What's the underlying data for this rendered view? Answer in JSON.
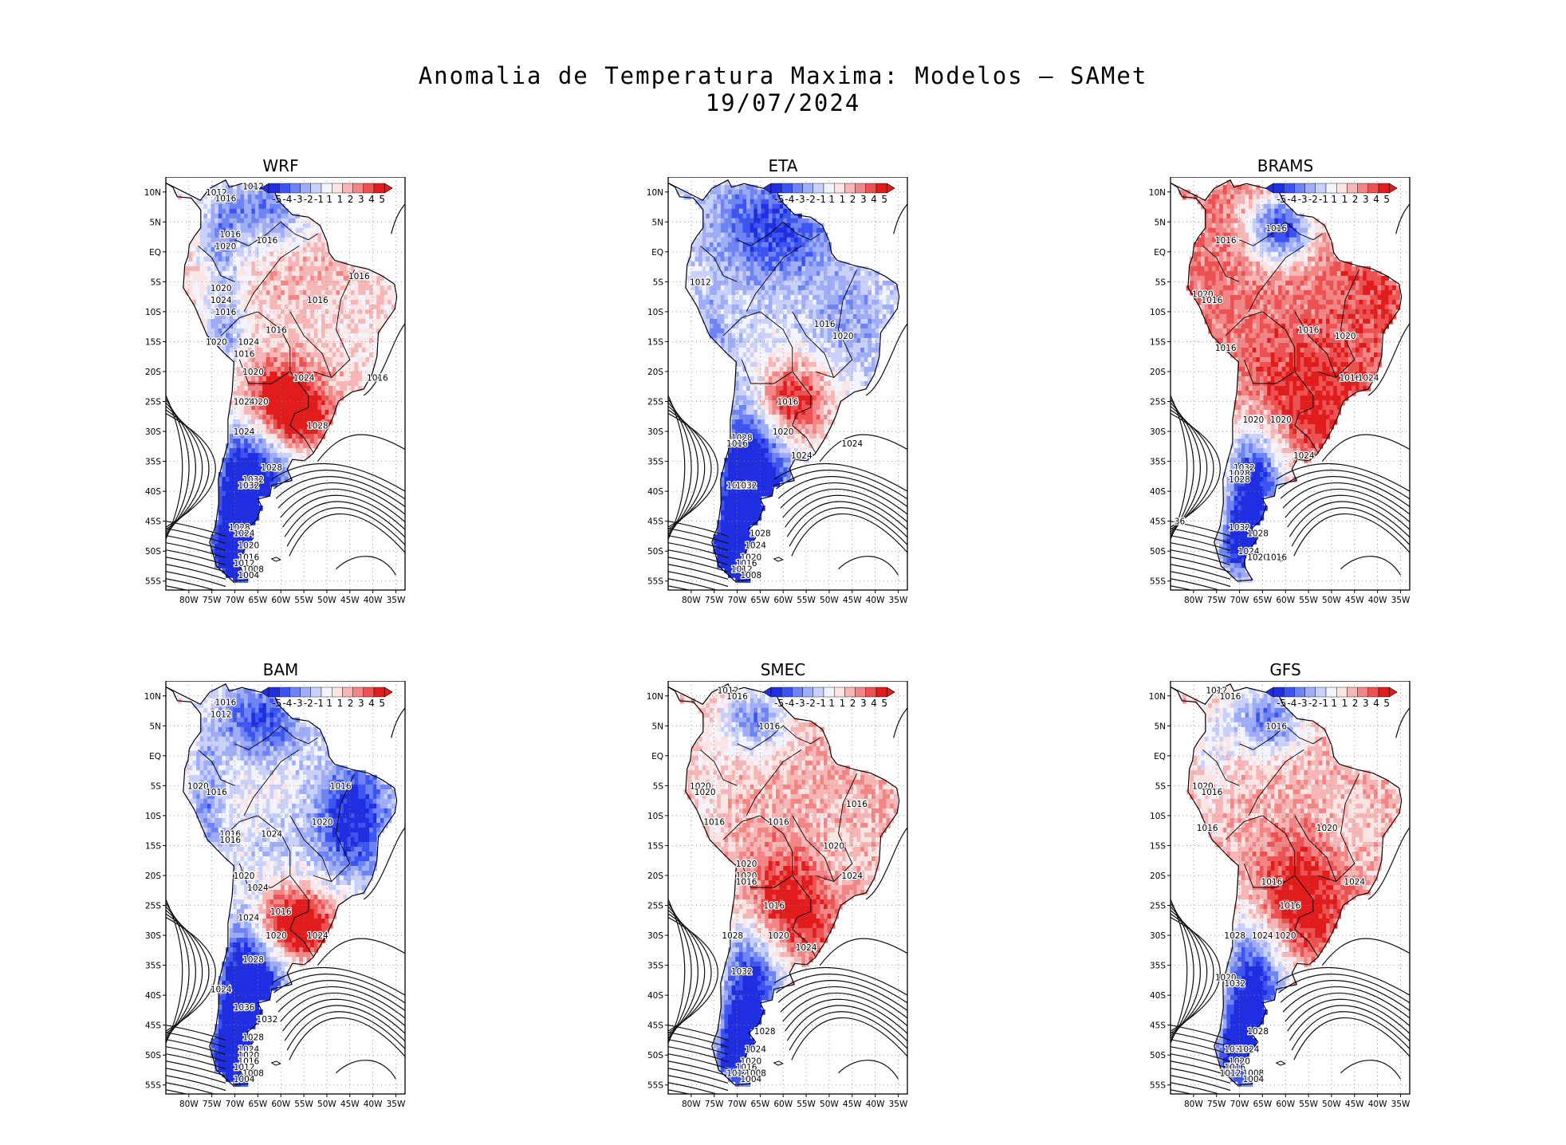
{
  "title": {
    "line1": "Anomalia de Temperatura Maxima: Modelos – SAMet",
    "line2": "19/07/2024"
  },
  "colorbar": {
    "labels": [
      "-5",
      "-4",
      "-3",
      "-2",
      "-1",
      "1",
      "1",
      "2",
      "3",
      "4",
      "5"
    ],
    "colors": [
      "#1f2fe0",
      "#3d55f0",
      "#6f84f4",
      "#9fadf7",
      "#c9d1fa",
      "#f2f3fd",
      "#fbe4e4",
      "#f6b6b6",
      "#f28585",
      "#ec5252",
      "#e11c1c"
    ]
  },
  "axes": {
    "lat_labels": [
      "10N",
      "5N",
      "EQ",
      "5S",
      "10S",
      "15S",
      "20S",
      "25S",
      "30S",
      "35S",
      "40S",
      "45S",
      "50S",
      "55S"
    ],
    "lon_labels": [
      "80W",
      "75W",
      "70W",
      "65W",
      "60W",
      "55W",
      "50W",
      "45W",
      "40W",
      "35W"
    ]
  },
  "panels": [
    {
      "name": "WRF",
      "title": "WRF",
      "pattern": "wrf",
      "isobar_labels": [
        "1012",
        "1012",
        "1016",
        "1016",
        "1016",
        "1020",
        "1016",
        "1016",
        "1020",
        "1024",
        "1016",
        "1016",
        "1024",
        "1020",
        "1016",
        "1020",
        "1024",
        "1016",
        "1020",
        "1024",
        "1024",
        "1028",
        "1028",
        "1032",
        "1032",
        "1028",
        "1024",
        "1020",
        "1016",
        "1012",
        "1008",
        "1004"
      ]
    },
    {
      "name": "ETA",
      "title": "ETA",
      "pattern": "eta",
      "isobar_labels": [
        "1012",
        "1016",
        "1020",
        "1016",
        "1024",
        "1020",
        "1028",
        "1016",
        "1024",
        "1024",
        "1032",
        "1028",
        "1024",
        "1020",
        "1016",
        "1012",
        "1008"
      ]
    },
    {
      "name": "BRAMS",
      "title": "BRAMS",
      "pattern": "brams",
      "isobar_labels": [
        "1016",
        "1016",
        "1020",
        "1016",
        "1016",
        "1016",
        "1020",
        "1016",
        "1024",
        "1020",
        "1020",
        "1024",
        "1032",
        "1028",
        "1028",
        "36",
        "1032",
        "1028",
        "1024",
        "1020",
        "1016"
      ]
    },
    {
      "name": "BAM",
      "title": "BAM",
      "pattern": "bam",
      "isobar_labels": [
        "1016",
        "1012",
        "1020",
        "1016",
        "1016",
        "1024",
        "1016",
        "1016",
        "1020",
        "1020",
        "1024",
        "1016",
        "1024",
        "1020",
        "1024",
        "1028",
        "1024",
        "1036",
        "1032",
        "1028",
        "1024",
        "1020",
        "1016",
        "1012",
        "1008",
        "1004"
      ]
    },
    {
      "name": "SMEC",
      "title": "SMEC",
      "pattern": "smec",
      "isobar_labels": [
        "1012",
        "1016",
        "1016",
        "1020",
        "1020",
        "1016",
        "1016",
        "1016",
        "1020",
        "1020",
        "1020",
        "1024",
        "1016",
        "1016",
        "1028",
        "1020",
        "1024",
        "1032",
        "1028",
        "1024",
        "1020",
        "1016",
        "1012",
        "1008",
        "1004"
      ]
    },
    {
      "name": "GFS",
      "title": "GFS",
      "pattern": "gfs",
      "isobar_labels": [
        "1012",
        "1016",
        "1016",
        "1020",
        "1016",
        "1016",
        "1020",
        "1024",
        "1016",
        "1016",
        "1028",
        "1024",
        "1020",
        "1020",
        "1032",
        "1028",
        "1032",
        "1024",
        "1020",
        "1016",
        "1012",
        "1008",
        "1004"
      ]
    }
  ]
}
